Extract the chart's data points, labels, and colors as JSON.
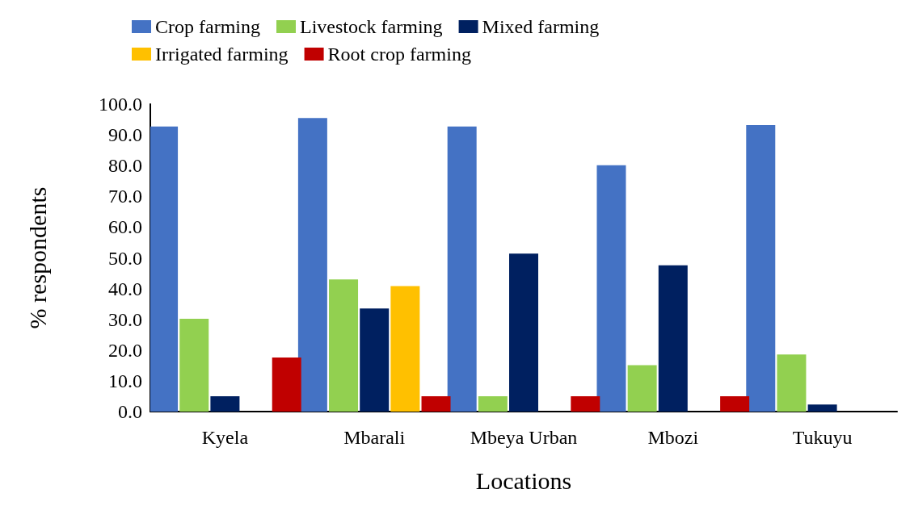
{
  "chart_data": {
    "type": "bar",
    "xlabel": "Locations",
    "ylabel": "% respondents",
    "categories": [
      "Kyela",
      "Mbarali",
      "Mbeya Urban",
      "Mbozi",
      "Tukuyu"
    ],
    "series": [
      {
        "name": "Crop farming",
        "color": "#4472c4",
        "values": [
          92.7,
          95.5,
          92.7,
          80.1,
          93.2
        ]
      },
      {
        "name": "Livestock farming",
        "color": "#92d050",
        "values": [
          30.2,
          43,
          5,
          15.1,
          18.6
        ]
      },
      {
        "name": "Mixed farming",
        "color": "#002060",
        "values": [
          5,
          33.5,
          51.4,
          47.6,
          2.3
        ]
      },
      {
        "name": "Irrigated farming",
        "color": "#ffc000",
        "values": [
          0,
          40.8,
          0,
          0,
          0
        ]
      },
      {
        "name": "Root crop farming",
        "color": "#c00000",
        "values": [
          17.6,
          5,
          5,
          5,
          0
        ]
      }
    ],
    "ylim": [
      0,
      100
    ],
    "yticks": [
      {
        "value": 0,
        "label": "0.0"
      },
      {
        "value": 10,
        "label": "10.0"
      },
      {
        "value": 20,
        "label": "20.0"
      },
      {
        "value": 30,
        "label": "30.0"
      },
      {
        "value": 40,
        "label": "40.0"
      },
      {
        "value": 50,
        "label": "50.0"
      },
      {
        "value": 60,
        "label": "60.0"
      },
      {
        "value": 70,
        "label": "70.0"
      },
      {
        "value": 80,
        "label": "80.0"
      },
      {
        "value": 90,
        "label": "90.0"
      },
      {
        "value": 100,
        "label": "100.0"
      }
    ],
    "grid": false,
    "legend": "top"
  }
}
